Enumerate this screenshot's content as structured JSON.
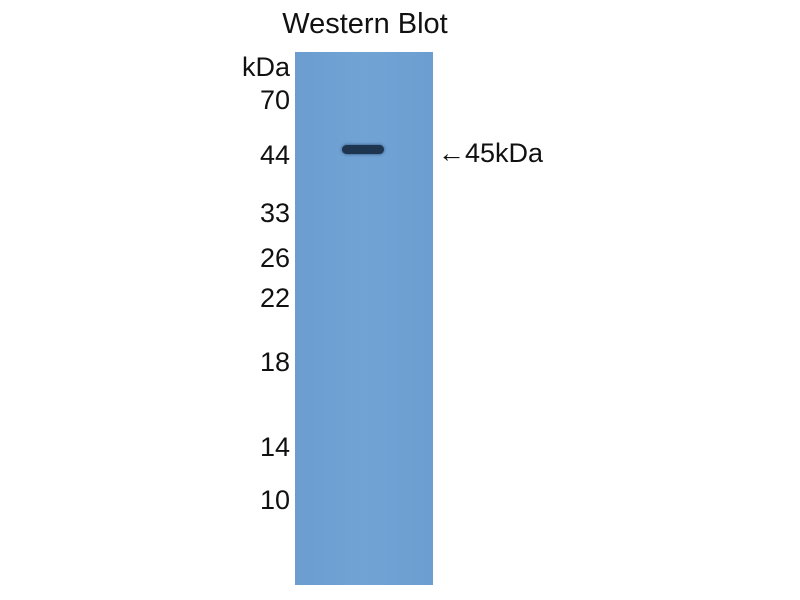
{
  "title": "Western Blot",
  "unit": "kDa",
  "markers": [
    "70",
    "44",
    "33",
    "26",
    "22",
    "18",
    "14",
    "10"
  ],
  "annotation": "←45kDa",
  "colors": {
    "membrane": "#6fa0d3",
    "band": "#1e3550"
  }
}
